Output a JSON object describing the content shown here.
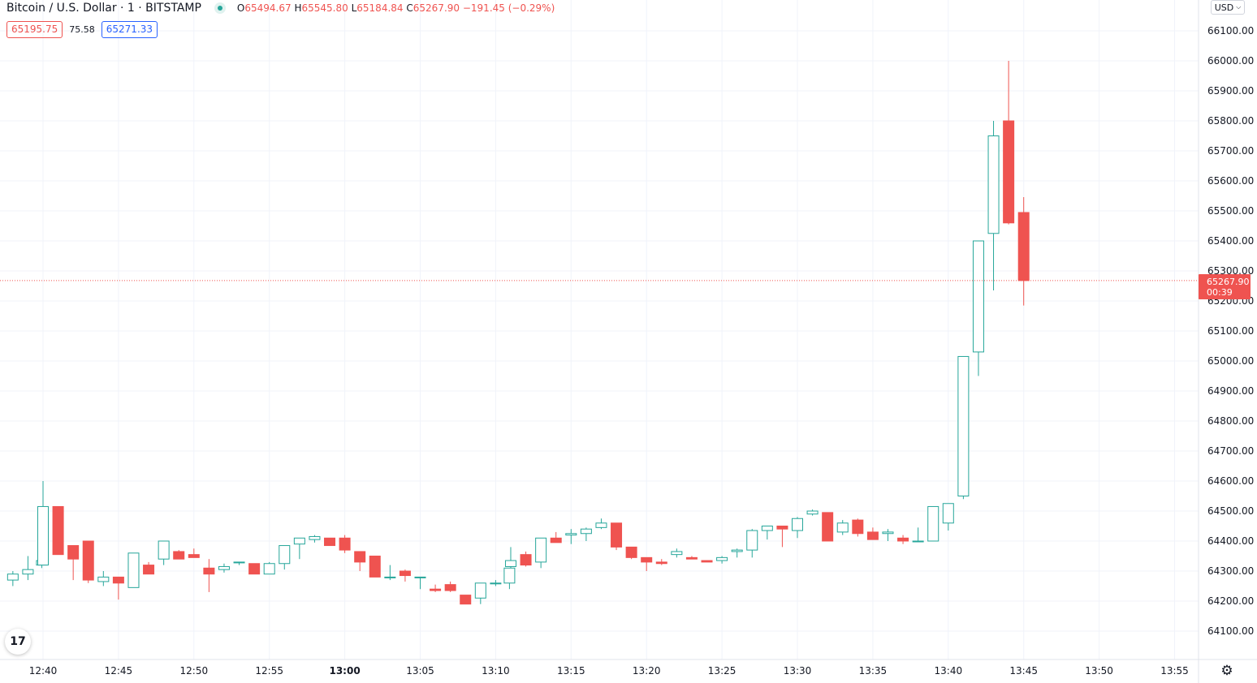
{
  "header": {
    "symbol_title": "Bitcoin / U.S. Dollar · 1 · BITSTAMP",
    "ohlc": {
      "o_label": "O",
      "o": "65494.67",
      "h_label": "H",
      "h": "65545.80",
      "l_label": "L",
      "l": "65184.84",
      "c_label": "C",
      "c": "65267.90",
      "change": "−191.45 (−0.29%)"
    }
  },
  "quote": {
    "bid": "65195.75",
    "spread": "75.58",
    "ask": "65271.33"
  },
  "currency_button": "USD",
  "last_price": {
    "price": "65267.90",
    "countdown": "00:39",
    "value": 65267.9
  },
  "logo_text": "17",
  "icons": {
    "settings": "gear-icon",
    "logo": "tradingview-logo-icon",
    "currency": "chevron-down-icon"
  },
  "colors": {
    "up": "#26a69a",
    "down": "#ef5350",
    "grid": "#f0f3fa",
    "text": "#131722"
  },
  "chart_data": {
    "type": "candlestick",
    "y_axis": {
      "side": "right",
      "range": [
        64030,
        66110
      ],
      "ticks": [
        "64100.00",
        "64200.00",
        "64300.00",
        "64400.00",
        "64500.00",
        "64600.00",
        "64700.00",
        "64800.00",
        "64900.00",
        "65000.00",
        "65100.00",
        "65200.00",
        "65300.00",
        "65400.00",
        "65500.00",
        "65600.00",
        "65700.00",
        "65800.00",
        "65900.00",
        "66000.00",
        "66100.00"
      ]
    },
    "x_axis": {
      "ticks": [
        "12:40",
        "12:45",
        "12:50",
        "12:55",
        "13:00",
        "13:05",
        "13:10",
        "13:15",
        "13:20",
        "13:25",
        "13:30",
        "13:35",
        "13:40",
        "13:45",
        "13:50",
        "13:55"
      ],
      "bold_ticks": [
        "13:00"
      ],
      "minute_range": [
        "12:38",
        "13:57"
      ]
    },
    "grid": true,
    "candles": [
      {
        "t": "12:38",
        "o": 64270,
        "h": 64300,
        "l": 64250,
        "c": 64290
      },
      {
        "t": "12:39",
        "o": 64290,
        "h": 64350,
        "l": 64270,
        "c": 64305
      },
      {
        "t": "12:39",
        "o": 64320,
        "h": 64340,
        "l": 64310,
        "c": 64335
      },
      {
        "t": "12:40",
        "o": 64320,
        "h": 64600,
        "l": 64320,
        "c": 64515
      },
      {
        "t": "12:41",
        "o": 64515,
        "h": 64515,
        "l": 64355,
        "c": 64355
      },
      {
        "t": "12:42",
        "o": 64385,
        "h": 64385,
        "l": 64270,
        "c": 64340
      },
      {
        "t": "12:43",
        "o": 64400,
        "h": 64400,
        "l": 64260,
        "c": 64270
      },
      {
        "t": "12:44",
        "o": 64265,
        "h": 64300,
        "l": 64250,
        "c": 64280
      },
      {
        "t": "12:45",
        "o": 64280,
        "h": 64280,
        "l": 64205,
        "c": 64260
      },
      {
        "t": "12:46",
        "o": 64245,
        "h": 64360,
        "l": 64245,
        "c": 64360
      },
      {
        "t": "12:47",
        "o": 64320,
        "h": 64330,
        "l": 64300,
        "c": 64290
      },
      {
        "t": "12:48",
        "o": 64340,
        "h": 64400,
        "l": 64320,
        "c": 64400
      },
      {
        "t": "12:49",
        "o": 64365,
        "h": 64370,
        "l": 64340,
        "c": 64340
      },
      {
        "t": "12:50",
        "o": 64355,
        "h": 64375,
        "l": 64345,
        "c": 64345
      },
      {
        "t": "12:51",
        "o": 64310,
        "h": 64340,
        "l": 64230,
        "c": 64290
      },
      {
        "t": "12:52",
        "o": 64305,
        "h": 64325,
        "l": 64295,
        "c": 64315
      },
      {
        "t": "12:53",
        "o": 64330,
        "h": 64330,
        "l": 64320,
        "c": 64330
      },
      {
        "t": "12:54",
        "o": 64325,
        "h": 64325,
        "l": 64290,
        "c": 64290
      },
      {
        "t": "12:55",
        "o": 64290,
        "h": 64330,
        "l": 64290,
        "c": 64325
      },
      {
        "t": "12:56",
        "o": 64325,
        "h": 64385,
        "l": 64305,
        "c": 64385
      },
      {
        "t": "12:57",
        "o": 64390,
        "h": 64410,
        "l": 64340,
        "c": 64410
      },
      {
        "t": "12:58",
        "o": 64405,
        "h": 64420,
        "l": 64395,
        "c": 64415
      },
      {
        "t": "12:59",
        "o": 64410,
        "h": 64410,
        "l": 64385,
        "c": 64385
      },
      {
        "t": "13:00",
        "o": 64410,
        "h": 64420,
        "l": 64360,
        "c": 64370
      },
      {
        "t": "13:01",
        "o": 64365,
        "h": 64365,
        "l": 64300,
        "c": 64330
      },
      {
        "t": "13:02",
        "o": 64350,
        "h": 64350,
        "l": 64280,
        "c": 64280
      },
      {
        "t": "13:03",
        "o": 64280,
        "h": 64320,
        "l": 64270,
        "c": 64280
      },
      {
        "t": "13:04",
        "o": 64300,
        "h": 64305,
        "l": 64265,
        "c": 64285
      },
      {
        "t": "13:05",
        "o": 64280,
        "h": 64280,
        "l": 64240,
        "c": 64280
      },
      {
        "t": "13:06",
        "o": 64240,
        "h": 64255,
        "l": 64230,
        "c": 64235
      },
      {
        "t": "13:07",
        "o": 64255,
        "h": 64265,
        "l": 64230,
        "c": 64235
      },
      {
        "t": "13:08",
        "o": 64220,
        "h": 64220,
        "l": 64190,
        "c": 64190
      },
      {
        "t": "13:09",
        "o": 64210,
        "h": 64260,
        "l": 64190,
        "c": 64260
      },
      {
        "t": "13:10",
        "o": 64260,
        "h": 64270,
        "l": 64250,
        "c": 64260
      },
      {
        "t": "13:10",
        "o": 64260,
        "h": 64310,
        "l": 64240,
        "c": 64310
      },
      {
        "t": "13:11",
        "o": 64315,
        "h": 64380,
        "l": 64310,
        "c": 64335
      },
      {
        "t": "13:12",
        "o": 64355,
        "h": 64365,
        "l": 64315,
        "c": 64320
      },
      {
        "t": "13:13",
        "o": 64330,
        "h": 64410,
        "l": 64310,
        "c": 64410
      },
      {
        "t": "13:14",
        "o": 64410,
        "h": 64430,
        "l": 64395,
        "c": 64395
      },
      {
        "t": "13:15",
        "o": 64420,
        "h": 64440,
        "l": 64390,
        "c": 64425
      },
      {
        "t": "13:16",
        "o": 64425,
        "h": 64445,
        "l": 64400,
        "c": 64440
      },
      {
        "t": "13:17",
        "o": 64445,
        "h": 64475,
        "l": 64440,
        "c": 64460
      },
      {
        "t": "13:18",
        "o": 64460,
        "h": 64460,
        "l": 64370,
        "c": 64380
      },
      {
        "t": "13:19",
        "o": 64380,
        "h": 64380,
        "l": 64340,
        "c": 64345
      },
      {
        "t": "13:20",
        "o": 64345,
        "h": 64345,
        "l": 64300,
        "c": 64330
      },
      {
        "t": "13:21",
        "o": 64330,
        "h": 64340,
        "l": 64320,
        "c": 64325
      },
      {
        "t": "13:22",
        "o": 64355,
        "h": 64375,
        "l": 64345,
        "c": 64365
      },
      {
        "t": "13:23",
        "o": 64345,
        "h": 64350,
        "l": 64340,
        "c": 64340
      },
      {
        "t": "13:24",
        "o": 64335,
        "h": 64335,
        "l": 64330,
        "c": 64330
      },
      {
        "t": "13:25",
        "o": 64335,
        "h": 64350,
        "l": 64325,
        "c": 64345
      },
      {
        "t": "13:26",
        "o": 64365,
        "h": 64375,
        "l": 64345,
        "c": 64370
      },
      {
        "t": "13:27",
        "o": 64370,
        "h": 64440,
        "l": 64345,
        "c": 64435
      },
      {
        "t": "13:28",
        "o": 64435,
        "h": 64450,
        "l": 64405,
        "c": 64450
      },
      {
        "t": "13:29",
        "o": 64450,
        "h": 64450,
        "l": 64380,
        "c": 64440
      },
      {
        "t": "13:30",
        "o": 64435,
        "h": 64480,
        "l": 64410,
        "c": 64475
      },
      {
        "t": "13:31",
        "o": 64490,
        "h": 64505,
        "l": 64485,
        "c": 64500
      },
      {
        "t": "13:32",
        "o": 64495,
        "h": 64495,
        "l": 64400,
        "c": 64400
      },
      {
        "t": "13:33",
        "o": 64430,
        "h": 64470,
        "l": 64420,
        "c": 64460
      },
      {
        "t": "13:34",
        "o": 64470,
        "h": 64475,
        "l": 64415,
        "c": 64425
      },
      {
        "t": "13:35",
        "o": 64430,
        "h": 64445,
        "l": 64405,
        "c": 64405
      },
      {
        "t": "13:36",
        "o": 64425,
        "h": 64440,
        "l": 64400,
        "c": 64430
      },
      {
        "t": "13:37",
        "o": 64410,
        "h": 64420,
        "l": 64390,
        "c": 64400
      },
      {
        "t": "13:38",
        "o": 64400,
        "h": 64445,
        "l": 64400,
        "c": 64400
      },
      {
        "t": "13:39",
        "o": 64400,
        "h": 64515,
        "l": 64400,
        "c": 64515
      },
      {
        "t": "13:40",
        "o": 64460,
        "h": 64525,
        "l": 64435,
        "c": 64525
      },
      {
        "t": "13:41",
        "o": 64550,
        "h": 65015,
        "l": 64540,
        "c": 65015
      },
      {
        "t": "13:42",
        "o": 65030,
        "h": 65400,
        "l": 64950,
        "c": 65400
      },
      {
        "t": "13:43",
        "o": 65425,
        "h": 65800,
        "l": 65235,
        "c": 65750
      },
      {
        "t": "13:44",
        "o": 65800,
        "h": 66000,
        "l": 65455,
        "c": 65460
      },
      {
        "t": "13:45",
        "o": 65494.67,
        "h": 65545.8,
        "l": 65184.84,
        "c": 65267.9
      }
    ]
  }
}
